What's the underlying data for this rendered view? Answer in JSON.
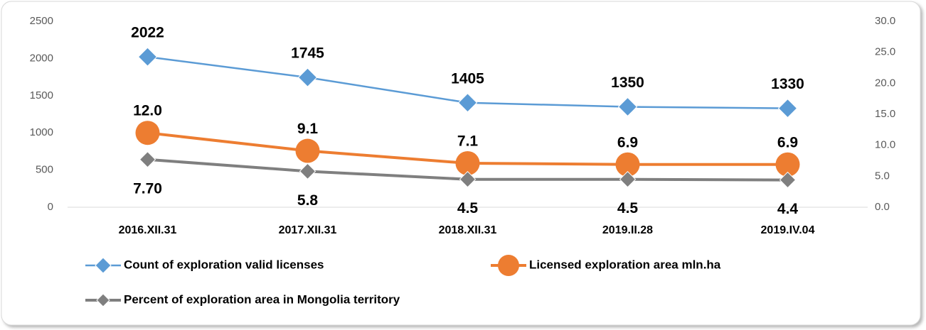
{
  "chart_data": {
    "type": "line",
    "categories": [
      "2016.XII.31",
      "2017.XII.31",
      "2018.XII.31",
      "2019.II.28",
      "2019.IV.04"
    ],
    "ylim": [
      0,
      2500
    ],
    "yticks": [
      0,
      500,
      1000,
      1500,
      2000,
      2500
    ],
    "y2lim": [
      0,
      30
    ],
    "y2ticks": [
      {
        "value": 0,
        "label": "0.0"
      },
      {
        "value": 5,
        "label": "5.0"
      },
      {
        "value": 10,
        "label": "10.0"
      },
      {
        "value": 15,
        "label": "15.0"
      },
      {
        "value": 20,
        "label": "20.0"
      },
      {
        "value": 25,
        "label": "25.0"
      },
      {
        "value": 30,
        "label": "30.0"
      }
    ],
    "legend": "bottom",
    "series": [
      {
        "name": "Count of exploration valid licenses",
        "color": "#5b9bd5",
        "marker": "diamond",
        "values": [
          2022,
          1745,
          1405,
          1350,
          1330
        ]
      },
      {
        "name": "Licensed exploration area mln.ha",
        "color": "#ed7d31",
        "marker": "circle",
        "axis": "y2",
        "values": [
          12.0,
          9.1,
          7.1,
          6.9,
          6.9
        ],
        "value_labels": [
          "12.0",
          "9.1",
          "7.1",
          "6.9",
          "6.9"
        ]
      },
      {
        "name": "Percent of exploration area in Mongolia territory",
        "color": "#7f7f7f",
        "marker": "diamond",
        "axis": "y2",
        "values": [
          7.7,
          5.8,
          4.5,
          4.5,
          4.4
        ],
        "value_labels": [
          "7.70",
          "5.8",
          "4.5",
          "4.5",
          "4.4"
        ]
      }
    ]
  }
}
